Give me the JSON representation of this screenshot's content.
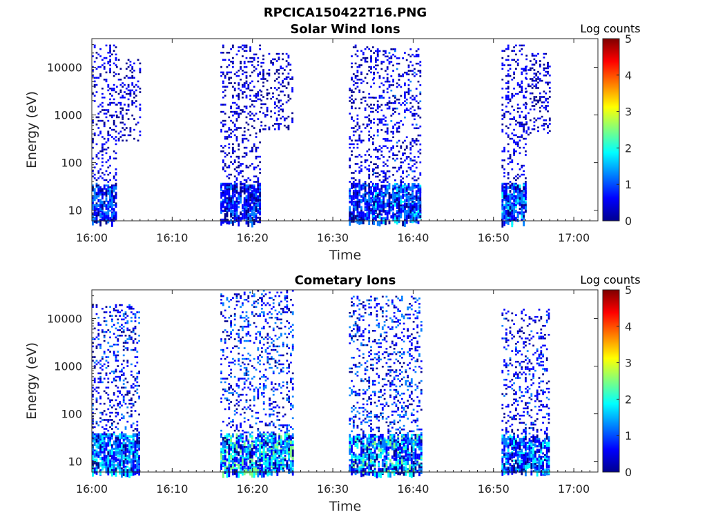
{
  "figure": {
    "title": "RPCICA150422T16.PNG",
    "colorscale": [
      "#00008f",
      "#0000ff",
      "#007fff",
      "#00ffff",
      "#7fff7f",
      "#ffff00",
      "#ff7f00",
      "#ff0000",
      "#7f0000"
    ]
  },
  "chart_data": [
    {
      "type": "heatmap",
      "title": "Solar Wind Ions",
      "xlabel": "Time",
      "ylabel": "Energy (eV)",
      "y_scale": "log",
      "xlim": [
        "16:00",
        "17:03"
      ],
      "ylim": [
        6,
        40000
      ],
      "x_ticks": [
        "16:00",
        "16:10",
        "16:20",
        "16:30",
        "16:40",
        "16:50",
        "17:00"
      ],
      "y_ticks": [
        "10",
        "100",
        "1000",
        "10000"
      ],
      "colorbar": {
        "label": "Log counts",
        "min": 0,
        "max": 5,
        "ticks": [
          "0",
          "1",
          "2",
          "3",
          "4",
          "5"
        ]
      },
      "bursts": [
        {
          "start": "16:00",
          "end": "16:03",
          "emin": 6,
          "emax": 30000,
          "peak_log_counts": 1.6
        },
        {
          "start": "16:03",
          "end": "16:06",
          "emin": 300,
          "emax": 15000,
          "peak_log_counts": 1.0
        },
        {
          "start": "16:16",
          "end": "16:21",
          "emin": 6,
          "emax": 30000,
          "peak_log_counts": 1.2
        },
        {
          "start": "16:21",
          "end": "16:25",
          "emin": 500,
          "emax": 20000,
          "peak_log_counts": 1.0
        },
        {
          "start": "16:32",
          "end": "16:35",
          "emin": 6,
          "emax": 30000,
          "peak_log_counts": 1.3
        },
        {
          "start": "16:35",
          "end": "16:41",
          "emin": 6,
          "emax": 25000,
          "peak_log_counts": 1.8
        },
        {
          "start": "16:51",
          "end": "16:54",
          "emin": 6,
          "emax": 30000,
          "peak_log_counts": 1.7
        },
        {
          "start": "16:54",
          "end": "16:57",
          "emin": 400,
          "emax": 20000,
          "peak_log_counts": 1.0
        }
      ]
    },
    {
      "type": "heatmap",
      "title": "Cometary Ions",
      "xlabel": "Time",
      "ylabel": "Energy (eV)",
      "y_scale": "log",
      "xlim": [
        "16:00",
        "17:03"
      ],
      "ylim": [
        6,
        40000
      ],
      "x_ticks": [
        "16:00",
        "16:10",
        "16:20",
        "16:30",
        "16:40",
        "16:50",
        "17:00"
      ],
      "y_ticks": [
        "10",
        "100",
        "1000",
        "10000"
      ],
      "colorbar": {
        "label": "Log counts",
        "min": 0,
        "max": 5,
        "ticks": [
          "0",
          "1",
          "2",
          "3",
          "4",
          "5"
        ]
      },
      "bursts": [
        {
          "start": "16:00",
          "end": "16:06",
          "emin": 6,
          "emax": 20000,
          "peak_log_counts": 2.2
        },
        {
          "start": "16:16",
          "end": "16:25",
          "emin": 6,
          "emax": 40000,
          "peak_log_counts": 2.6
        },
        {
          "start": "16:32",
          "end": "16:41",
          "emin": 6,
          "emax": 30000,
          "peak_log_counts": 2.5
        },
        {
          "start": "16:51",
          "end": "16:57",
          "emin": 6,
          "emax": 16000,
          "peak_log_counts": 2.0
        }
      ]
    }
  ]
}
